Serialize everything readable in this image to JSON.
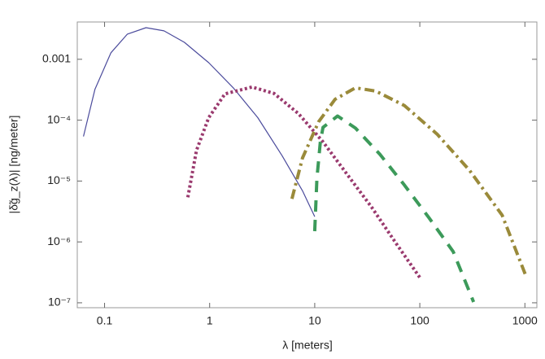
{
  "chart_data": {
    "type": "line",
    "x_label": "λ [meters]",
    "y_label": "|δ̃g_z(λ)| [ng/meter]",
    "xscale": "log",
    "yscale": "log",
    "xlim": [
      0.055,
      1300
    ],
    "ylim": [
      8.3e-08,
      0.0041
    ],
    "xticks": [
      0.1,
      1,
      10,
      100,
      1000
    ],
    "yticks": [
      {
        "value": 1e-07,
        "label": "10⁻⁷"
      },
      {
        "value": 1e-06,
        "label": "10⁻⁶"
      },
      {
        "value": 1e-05,
        "label": "10⁻⁵"
      },
      {
        "value": 0.0001,
        "label": "10⁻⁴"
      },
      0.001
    ],
    "series": [
      {
        "color": "#4b4b9c",
        "dash": "solid",
        "width": 1.2,
        "x": [
          0.063,
          0.081,
          0.115,
          0.165,
          0.248,
          0.368,
          0.575,
          0.98,
          1.68,
          2.87,
          4.9,
          7.65,
          10
        ],
        "values": [
          5.4e-05,
          0.00032,
          0.00128,
          0.00259,
          0.0033,
          0.00293,
          0.0019,
          0.00088,
          0.00034,
          0.00011,
          2.6e-05,
          6.9e-06,
          2.6e-06
        ]
      },
      {
        "color": "#9a3a6e",
        "dash": "dotted",
        "width": 4,
        "x": [
          0.62,
          0.75,
          0.98,
          1.4,
          2.53,
          4.1,
          7.0,
          12.0,
          20.4,
          34.9,
          59.6,
          100
        ],
        "values": [
          5.4e-06,
          3.2e-05,
          0.00011,
          0.00027,
          0.00035,
          0.000275,
          0.000128,
          4.4e-05,
          1.28e-05,
          3.7e-06,
          9.4e-07,
          2.6e-07
        ]
      },
      {
        "color": "#3c9a5a",
        "dash": "dashed",
        "width": 4,
        "x": [
          10,
          10.5,
          11.3,
          12.0,
          16.5,
          24.4,
          41.7,
          71.3,
          122,
          208,
          325
        ],
        "values": [
          1.5e-06,
          1.1e-05,
          4.4e-05,
          7.6e-05,
          0.000117,
          7.4e-05,
          2.75e-05,
          8.6e-06,
          2.5e-06,
          6.9e-07,
          1.03e-07
        ]
      },
      {
        "color": "#9a8a3a",
        "dash": "dashdot",
        "width": 4,
        "x": [
          6.07,
          7.65,
          10.9,
          15.6,
          24.4,
          38.1,
          71.3,
          146,
          297,
          607,
          1037
        ],
        "values": [
          5.1e-06,
          2.4e-05,
          9.4e-05,
          0.00022,
          0.00034,
          0.0003,
          0.000174,
          5.9e-05,
          1.5e-05,
          2.75e-06,
          2.6e-07
        ]
      }
    ]
  }
}
